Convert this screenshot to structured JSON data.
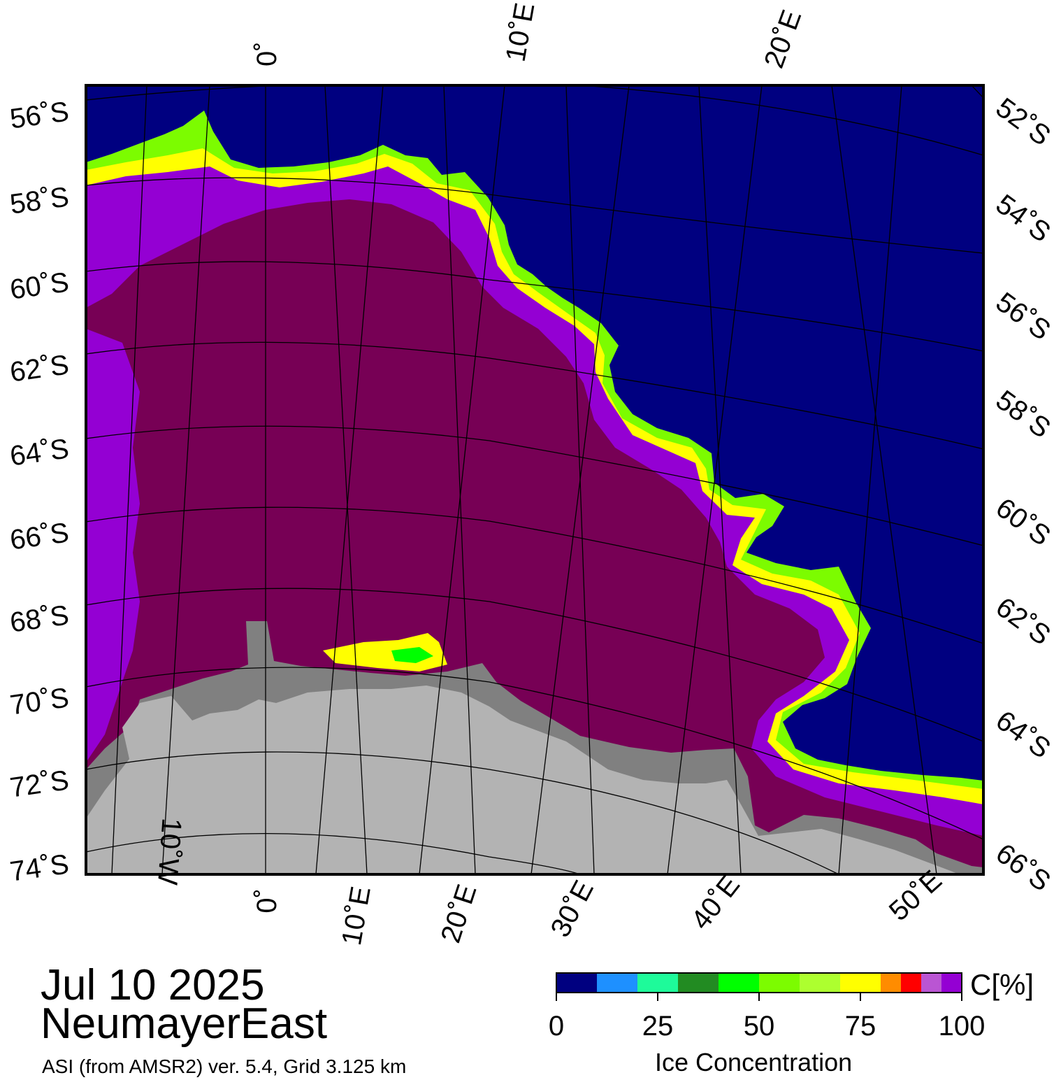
{
  "map": {
    "region": "NeumayerEast",
    "date": "Jul 10 2025",
    "source": "ASI (from AMSR2) ver. 5.4,  Grid 3.125 km",
    "colors": {
      "open_water": "#000080",
      "ice_full": "#770055",
      "ice_high": "#9400d3",
      "land_ice_shelf": "#808080",
      "land": "#b3b3b3",
      "graticule": "#000000"
    },
    "lon_labels_top": [
      "0˚",
      "10˚E",
      "20˚E"
    ],
    "lon_labels_bottom": [
      "10˚W",
      "0˚",
      "10˚E",
      "20˚E",
      "30˚E",
      "40˚E",
      "50˚E"
    ],
    "lat_labels_left": [
      "56˚S",
      "58˚S",
      "60˚S",
      "62˚S",
      "64˚S",
      "66˚S",
      "68˚S",
      "70˚S",
      "72˚S",
      "74˚S"
    ],
    "lat_labels_right": [
      "52˚S",
      "54˚S",
      "56˚S",
      "58˚S",
      "60˚S",
      "62˚S",
      "64˚S",
      "66˚S"
    ]
  },
  "colorbar": {
    "label": "Ice Concentration",
    "unit": "C[%]",
    "ticks": [
      "0",
      "25",
      "50",
      "75",
      "100"
    ],
    "bins": [
      {
        "from": 0,
        "to": 10,
        "color": "#000080"
      },
      {
        "from": 10,
        "to": 20,
        "color": "#1e90ff"
      },
      {
        "from": 20,
        "to": 30,
        "color": "#1efa9a"
      },
      {
        "from": 30,
        "to": 40,
        "color": "#228b22"
      },
      {
        "from": 40,
        "to": 50,
        "color": "#00ff00"
      },
      {
        "from": 50,
        "to": 60,
        "color": "#7cfc00"
      },
      {
        "from": 60,
        "to": 70,
        "color": "#adff2f"
      },
      {
        "from": 70,
        "to": 80,
        "color": "#ffff00"
      },
      {
        "from": 80,
        "to": 85,
        "color": "#ff8c00"
      },
      {
        "from": 85,
        "to": 90,
        "color": "#ff0000"
      },
      {
        "from": 90,
        "to": 95,
        "color": "#ba55d3"
      },
      {
        "from": 95,
        "to": 100,
        "color": "#9400d3"
      }
    ]
  }
}
